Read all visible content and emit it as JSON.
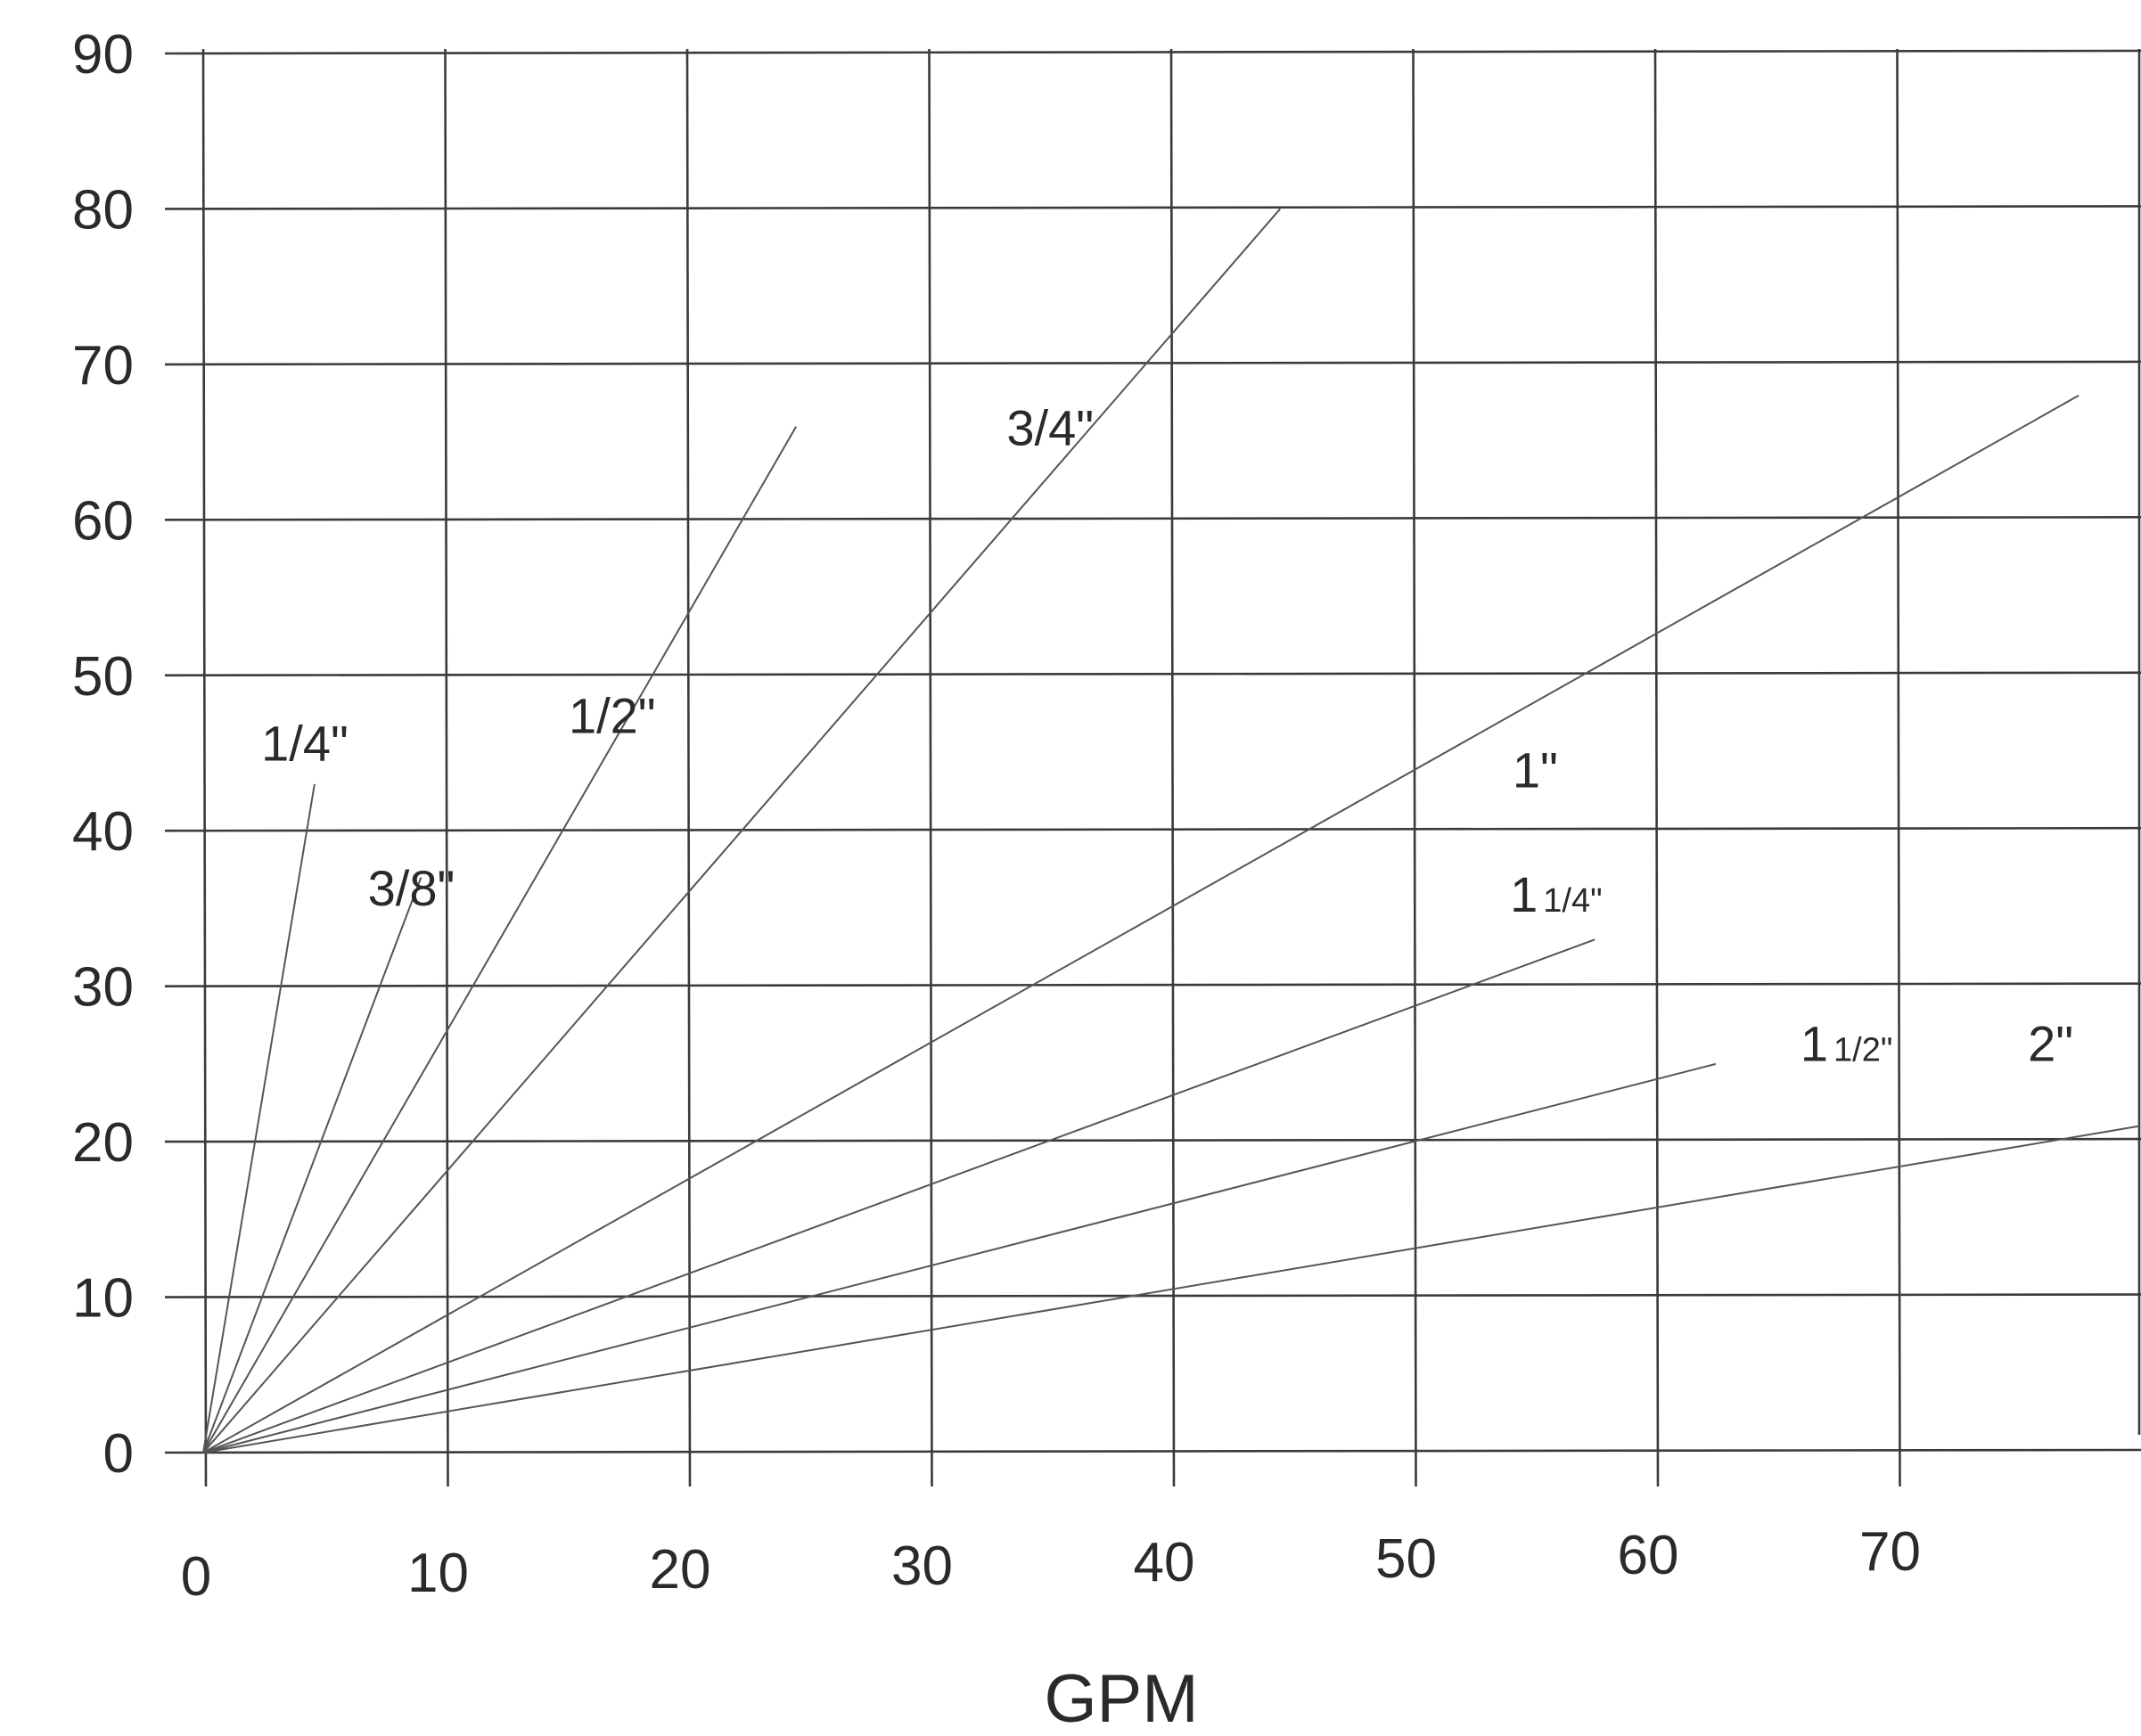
{
  "chart_data": {
    "type": "line",
    "title": "",
    "xlabel": "GPM",
    "ylabel": "",
    "xlim": [
      0,
      80
    ],
    "ylim": [
      0,
      90
    ],
    "x_ticks": [
      0,
      10,
      20,
      30,
      40,
      50,
      60,
      70
    ],
    "y_ticks": [
      0,
      10,
      20,
      30,
      40,
      50,
      60,
      70,
      80,
      90
    ],
    "grid": true,
    "legend": "none",
    "series": [
      {
        "name": "1/4\"",
        "x": [
          0,
          4.6
        ],
        "y": [
          0,
          43
        ]
      },
      {
        "name": "3/8\"",
        "x": [
          0,
          9
        ],
        "y": [
          0,
          37
        ]
      },
      {
        "name": "1/2\"",
        "x": [
          0,
          24.5
        ],
        "y": [
          0,
          66
        ]
      },
      {
        "name": "3/4\"",
        "x": [
          0,
          44.5
        ],
        "y": [
          0,
          80
        ]
      },
      {
        "name": "1\"",
        "x": [
          0,
          77.5
        ],
        "y": [
          0,
          68
        ]
      },
      {
        "name": "1 1/4\"",
        "x": [
          0,
          57.5
        ],
        "y": [
          0,
          33
        ]
      },
      {
        "name": "1 1/2\"",
        "x": [
          0,
          62.5
        ],
        "y": [
          0,
          25
        ]
      },
      {
        "name": "2\"",
        "x": [
          0,
          80
        ],
        "y": [
          0,
          21
        ]
      }
    ],
    "series_labels": [
      {
        "text": "1/4\"",
        "x": 2.4,
        "y": 44.5
      },
      {
        "text": "3/8\"",
        "x": 6.8,
        "y": 35.2
      },
      {
        "text": "1/2\"",
        "x": 15.1,
        "y": 46.3
      },
      {
        "text": "3/4\"",
        "x": 33.2,
        "y": 64.8
      },
      {
        "text": "1\"",
        "x": 54.1,
        "y": 42.8
      },
      {
        "text": "1",
        "sub": "1/4\"",
        "x": 54.0,
        "y": 34.8
      },
      {
        "text": "1",
        "sub": "1/2\"",
        "x": 66.0,
        "y": 25.2
      },
      {
        "text": "2\"",
        "x": 75.4,
        "y": 25.2
      }
    ]
  }
}
